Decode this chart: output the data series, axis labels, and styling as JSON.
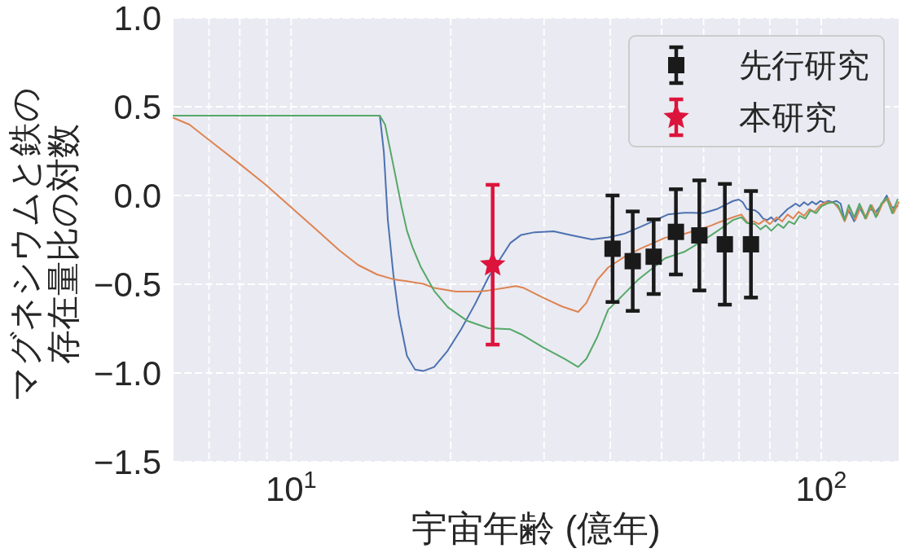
{
  "chart_data": {
    "type": "line",
    "xlabel": "宇宙年齢 (億年)",
    "ylabel": "マグネシウムと鉄の存在量比の対数",
    "log": "x",
    "xlim": [
      6,
      140
    ],
    "ylim": [
      -1.5,
      1.0
    ],
    "xticks": [
      {
        "value": 7,
        "label": null
      },
      {
        "value": 8,
        "label": null
      },
      {
        "value": 9,
        "label": null
      },
      {
        "value": 10,
        "label": "10$^{1}$"
      },
      {
        "value": 20,
        "label": null
      },
      {
        "value": 30,
        "label": null
      },
      {
        "value": 40,
        "label": null
      },
      {
        "value": 50,
        "label": null
      },
      {
        "value": 60,
        "label": null
      },
      {
        "value": 70,
        "label": null
      },
      {
        "value": 80,
        "label": null
      },
      {
        "value": 90,
        "label": null
      },
      {
        "value": 100,
        "label": "10$^{2}$"
      }
    ],
    "yticks": [
      {
        "value": -1.5,
        "label": "−1.5"
      },
      {
        "value": -1.0,
        "label": "−1.0"
      },
      {
        "value": -0.5,
        "label": "−0.5"
      },
      {
        "value": 0.0,
        "label": "0.0"
      },
      {
        "value": 0.5,
        "label": "0.5"
      },
      {
        "value": 1.0,
        "label": "1.0"
      }
    ],
    "grid": true,
    "legend": "top right",
    "line_style": "solid",
    "series": [
      {
        "color": "#4c72b0",
        "x": [
          6.0,
          14.7,
          14.96,
          15.22,
          15.59,
          15.96,
          16.54,
          17.13,
          17.75,
          18.61,
          19.74,
          20.95,
          22.22,
          23.57,
          25.91,
          27.16,
          28.81,
          31.29,
          33.59,
          36.93,
          39.63,
          42.55,
          45.67,
          51.38,
          55.13,
          57.12,
          59.89,
          63.54,
          68.2,
          69.9,
          71.1,
          72.4,
          75.0,
          76.3,
          77.7,
          79.1,
          80.5,
          81.9,
          83.4,
          84.9,
          86.4,
          88.0,
          89.5,
          91.1,
          92.8,
          94.4,
          96.1,
          97.8,
          99.6,
          101.3,
          103.1,
          105.0,
          106.9,
          108.8,
          110.7,
          112.7,
          115.4,
          118.1,
          121.0,
          123.8,
          126.8,
          129.8,
          132.9,
          136.1,
          139.3
        ],
        "values": [
          0.45,
          0.45,
          0.245,
          -0.138,
          -0.445,
          -0.674,
          -0.904,
          -0.981,
          -0.989,
          -0.966,
          -0.874,
          -0.751,
          -0.613,
          -0.46,
          -0.268,
          -0.222,
          -0.207,
          -0.202,
          -0.222,
          -0.248,
          -0.236,
          -0.215,
          -0.176,
          -0.107,
          -0.097,
          -0.097,
          -0.1,
          -0.077,
          -0.031,
          -0.023,
          -0.038,
          -0.077,
          -0.084,
          -0.1,
          -0.13,
          -0.138,
          -0.123,
          -0.146,
          -0.123,
          -0.1,
          -0.077,
          -0.061,
          -0.046,
          -0.061,
          -0.038,
          -0.054,
          -0.035,
          -0.05,
          -0.031,
          -0.041,
          -0.031,
          -0.038,
          -0.031,
          -0.046,
          -0.138,
          -0.084,
          -0.146,
          -0.069,
          -0.123,
          -0.077,
          -0.092,
          -0.054,
          0.0,
          -0.069,
          -0.061
        ]
      },
      {
        "color": "#dd8452",
        "x": [
          6.0,
          6.43,
          6.99,
          7.95,
          8.95,
          9.95,
          11.07,
          12.31,
          13.37,
          14.52,
          15.59,
          16.54,
          17.75,
          18.61,
          20.46,
          22.49,
          23.57,
          25.29,
          26.52,
          27.48,
          29.85,
          32.42,
          34.8,
          36.06,
          37.81,
          39.63,
          42.55,
          45.67,
          50.78,
          55.13,
          62.05,
          64.29,
          68.2,
          70.7,
          72.8,
          74.6,
          76.3,
          78.2,
          80.0,
          82.4,
          84.4,
          86.4,
          88.5,
          90.6,
          92.8,
          95.0,
          97.2,
          99.6,
          102.5,
          105.6,
          108.1,
          110.7,
          113.3,
          116.0,
          118.8,
          121.6,
          124.5,
          127.5,
          130.5,
          133.7,
          136.9,
          140
        ],
        "values": [
          0.437,
          0.399,
          0.314,
          0.184,
          0.061,
          -0.061,
          -0.184,
          -0.307,
          -0.391,
          -0.445,
          -0.472,
          -0.483,
          -0.498,
          -0.521,
          -0.541,
          -0.541,
          -0.535,
          -0.521,
          -0.51,
          -0.521,
          -0.575,
          -0.625,
          -0.656,
          -0.605,
          -0.475,
          -0.406,
          -0.345,
          -0.299,
          -0.238,
          -0.217,
          -0.169,
          -0.15,
          -0.123,
          -0.107,
          -0.157,
          -0.146,
          -0.161,
          -0.138,
          -0.161,
          -0.123,
          -0.146,
          -0.107,
          -0.13,
          -0.092,
          -0.115,
          -0.077,
          -0.092,
          -0.054,
          -0.038,
          -0.041,
          -0.077,
          -0.146,
          -0.069,
          -0.138,
          -0.061,
          -0.13,
          -0.054,
          -0.115,
          -0.046,
          -0.015,
          -0.1,
          -0.038
        ]
      },
      {
        "color": "#55a868",
        "x": [
          6.0,
          14.7,
          15.04,
          15.59,
          16.15,
          16.54,
          16.94,
          17.54,
          18.61,
          19.74,
          21.45,
          23.57,
          25.91,
          27.16,
          29.85,
          32.8,
          34.8,
          36.06,
          37.81,
          39.63,
          42.55,
          45.13,
          50.78,
          55.13,
          57.12,
          62.05,
          64.29,
          68.2,
          70.7,
          72.4,
          75.0,
          76.8,
          78.6,
          80.5,
          82.9,
          84.9,
          86.9,
          89.0,
          91.1,
          93.3,
          95.5,
          97.8,
          100.1,
          102.5,
          105.0,
          107.5,
          110.7,
          112.7,
          115.4,
          118.1,
          121.0,
          123.8,
          126.8,
          129.8,
          132.9,
          136.1,
          139.3
        ],
        "values": [
          0.45,
          0.45,
          0.399,
          0.169,
          -0.061,
          -0.199,
          -0.291,
          -0.399,
          -0.537,
          -0.629,
          -0.705,
          -0.748,
          -0.754,
          -0.782,
          -0.855,
          -0.92,
          -0.966,
          -0.92,
          -0.797,
          -0.644,
          -0.552,
          -0.475,
          -0.353,
          -0.318,
          -0.291,
          -0.223,
          -0.192,
          -0.138,
          -0.123,
          -0.155,
          -0.161,
          -0.191,
          -0.169,
          -0.199,
          -0.161,
          -0.183,
          -0.146,
          -0.161,
          -0.115,
          -0.13,
          -0.084,
          -0.1,
          -0.061,
          -0.046,
          -0.038,
          -0.054,
          -0.138,
          -0.054,
          -0.123,
          -0.046,
          -0.13,
          -0.054,
          -0.123,
          -0.046,
          -0.015,
          -0.1,
          -0.023
        ]
      },
      {
        "type": "scatter",
        "name": "先行研究",
        "color": "#1a1a1a",
        "marker": "square",
        "x": [
          40.4,
          44.1,
          48.3,
          53.2,
          58.9,
          65.8,
          73.7
        ],
        "values": [
          -0.3,
          -0.37,
          -0.345,
          -0.205,
          -0.225,
          -0.275,
          -0.275
        ],
        "errors": [
          0.3,
          0.28,
          0.21,
          0.24,
          0.31,
          0.34,
          0.3
        ]
      },
      {
        "type": "scatter",
        "name": "本研究",
        "color": "#dc143c",
        "marker": "star",
        "x": [
          24
        ],
        "values": [
          -0.39
        ],
        "errors": [
          0.45
        ]
      }
    ]
  }
}
